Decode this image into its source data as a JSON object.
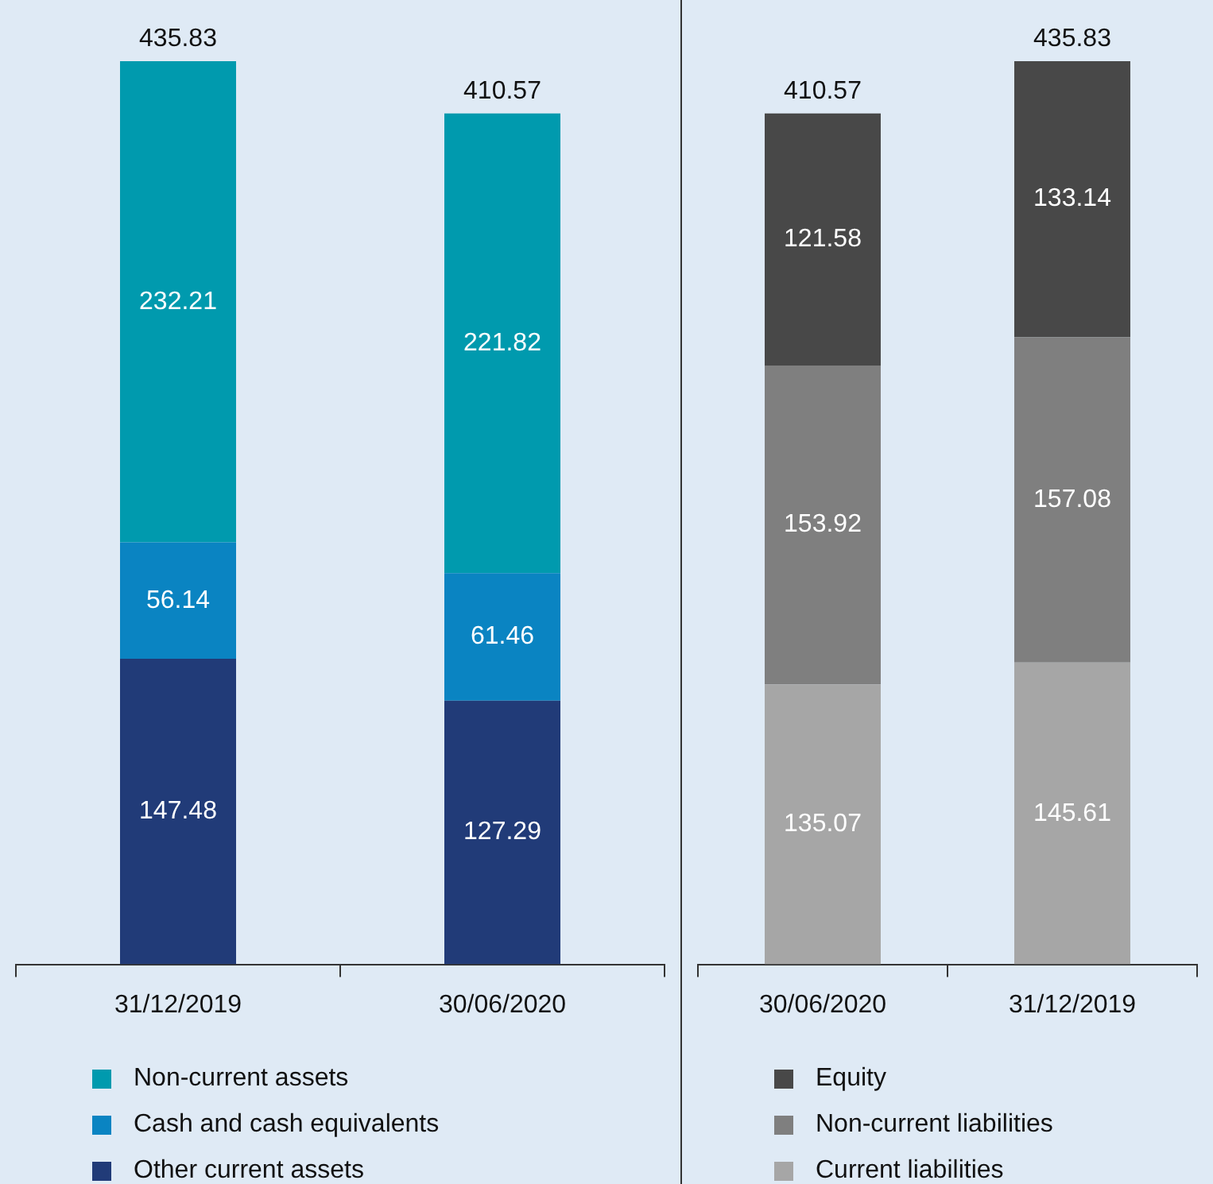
{
  "chart_data": [
    {
      "type": "bar",
      "stacked": true,
      "data_labels": true,
      "legend": "bottom",
      "categories": [
        "31/12/2019",
        "30/06/2020"
      ],
      "totals": [
        "435.83",
        "410.57"
      ],
      "series": [
        {
          "name": "Other current assets",
          "color": "#213b78",
          "values": [
            147.48,
            127.29
          ]
        },
        {
          "name": "Cash and cash equivalents",
          "color": "#0a84c2",
          "values": [
            56.14,
            61.46
          ]
        },
        {
          "name": "Non-current assets",
          "color": "#009aae",
          "values": [
            232.21,
            221.82
          ]
        }
      ]
    },
    {
      "type": "bar",
      "stacked": true,
      "data_labels": true,
      "legend": "bottom",
      "categories": [
        "30/06/2020",
        "31/12/2019"
      ],
      "totals": [
        "410.57",
        "435.83"
      ],
      "series": [
        {
          "name": "Current liabilities",
          "color": "#a6a6a6",
          "values": [
            135.07,
            145.61
          ]
        },
        {
          "name": "Non-current liabilities",
          "color": "#7f7f7f",
          "values": [
            153.92,
            157.08
          ]
        },
        {
          "name": "Equity",
          "color": "#484848",
          "values": [
            121.58,
            133.14
          ]
        }
      ]
    }
  ]
}
